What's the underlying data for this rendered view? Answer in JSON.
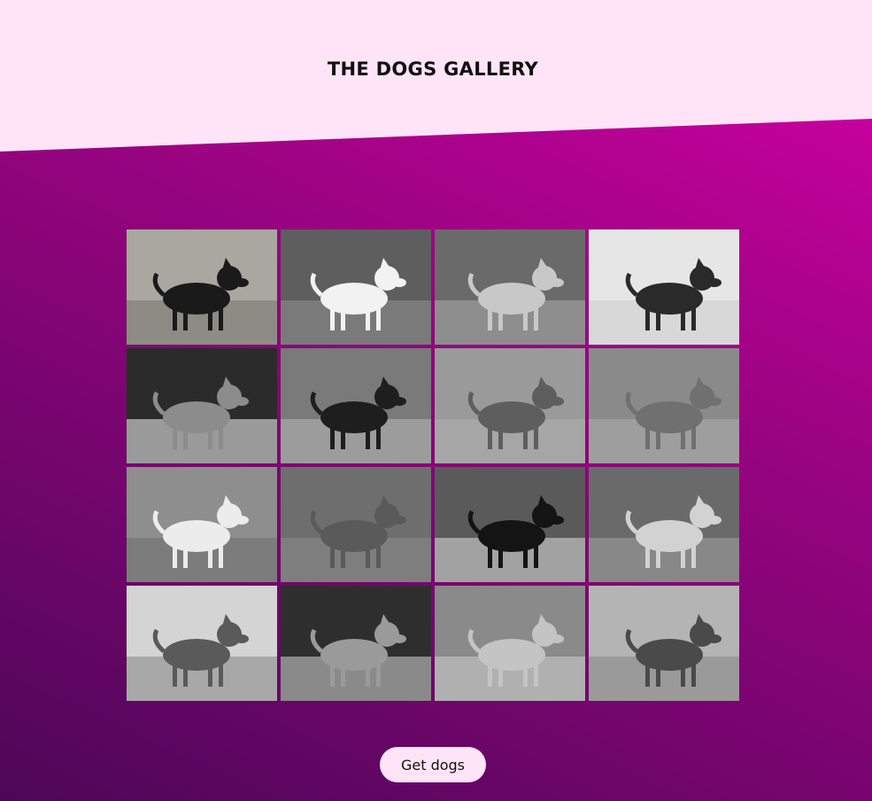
{
  "header": {
    "title": "THE DOGS GALLERY"
  },
  "colors": {
    "header_bg": "#ffe4f7",
    "gradient_light": "#d400a6",
    "gradient_mid": "#96047f",
    "gradient_dark": "#4d0758",
    "button_bg": "#ffe4f7"
  },
  "gallery": {
    "images": [
      {
        "icon": "schipperke-dog-photo",
        "bg": "#a8a8a0",
        "ground": "#8c8c84",
        "dog": "#1a1a1a"
      },
      {
        "icon": "samoyed-dog-photo",
        "bg": "#5e5e5e",
        "ground": "#7a7a7a",
        "dog": "#f2f2f2"
      },
      {
        "icon": "saluki-dog-photo",
        "bg": "#6a6a6a",
        "ground": "#8e8e8e",
        "dog": "#c8c8c8"
      },
      {
        "icon": "saint-bernard-dog-photo",
        "bg": "#e6e6e6",
        "ground": "#d8d8d8",
        "dog": "#2a2a2a"
      },
      {
        "icon": "long-haired-terrier-dog-photo",
        "bg": "#2b2b2b",
        "ground": "#9a9a9a",
        "dog": "#8c8c8c"
      },
      {
        "icon": "rottweiler-dog-photo",
        "bg": "#7a7a7a",
        "ground": "#9c9c9c",
        "dog": "#1e1e1e"
      },
      {
        "icon": "rhodesian-ridgeback-dog-photo",
        "bg": "#9a9a9a",
        "ground": "#a6a6a6",
        "dog": "#5e5e5e"
      },
      {
        "icon": "mastiff-dog-photo",
        "bg": "#8a8a8a",
        "ground": "#9e9e9e",
        "dog": "#707070"
      },
      {
        "icon": "rat-terrier-dog-photo",
        "bg": "#8e8e8e",
        "ground": "#7c7c7c",
        "dog": "#ececec"
      },
      {
        "icon": "pumi-dog-photo",
        "bg": "#6e6e6e",
        "ground": "#7e7e7e",
        "dog": "#5a5a5a"
      },
      {
        "icon": "puli-dog-photo",
        "bg": "#5a5a5a",
        "ground": "#a2a2a2",
        "dog": "#141414"
      },
      {
        "icon": "pug-dog-photo",
        "bg": "#6a6a6a",
        "ground": "#888888",
        "dog": "#d2d2d2"
      },
      {
        "icon": "toy-poodle-dog-photo",
        "bg": "#d4d4d4",
        "ground": "#a8a8a8",
        "dog": "#5a5a5a"
      },
      {
        "icon": "miniature-poodle-dog-photo",
        "bg": "#2e2e2e",
        "ground": "#8a8a8a",
        "dog": "#9a9a9a"
      },
      {
        "icon": "pomeranian-dog-photo",
        "bg": "#8a8a8a",
        "ground": "#b0b0b0",
        "dog": "#c4c4c4"
      },
      {
        "icon": "plott-hound-dog-photo",
        "bg": "#b4b4b4",
        "ground": "#9a9a9a",
        "dog": "#4a4a4a"
      }
    ]
  },
  "actions": {
    "get_dogs_label": "Get dogs"
  }
}
